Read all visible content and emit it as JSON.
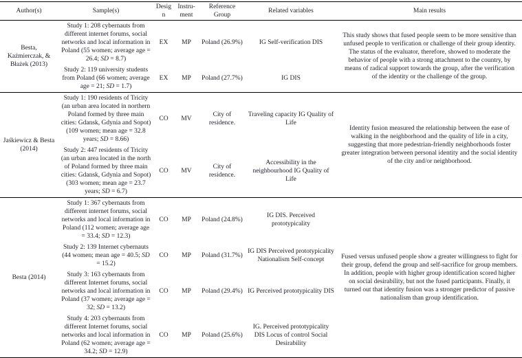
{
  "colors": {
    "background": "#ffffff",
    "text": "#1e1e28",
    "rule": "#000000"
  },
  "table": {
    "headers": {
      "author": "Author(s)",
      "sample": "Sample(s)",
      "design": "Design",
      "instrument": "Instru-ment",
      "reference": "Reference Group",
      "related": "Related variables",
      "main": "Main results"
    },
    "blocks": [
      {
        "author": "Besta, Kaźmierczak, & Błażek (2013)",
        "studies": [
          {
            "sample": "Study 1: 208 cybernauts from different internet forums, social networks and local information in Poland (55 women; average age = 26.4; SD = 8.7)",
            "design": "EX",
            "instrument": "MP",
            "reference": "Poland (26.9%)",
            "related": "IG Self-verification DIS"
          },
          {
            "sample": "Study 2: 119 university students from Poland (66 women; average age = 21; SD = 1.7)",
            "design": "EX",
            "instrument": "MP",
            "reference": "Poland (27.7%)",
            "related": "IG DIS"
          }
        ],
        "main_results": "This study shows that fused people seem to be more sensitive than unfused people to verification or challenge of their group identity. The status of the evaluator, therefore, showed to moderate the behavior of people with a strong attachment to the country, by means of radical support towards the group, after the verification of the identity or the challenge of the group."
      },
      {
        "author": "Jaśkiewicz & Besta (2014)",
        "studies": [
          {
            "sample": "Study 1: 190 residents of Tricity (an urban area located in northern Poland formed by three main cities: Gdansk, Gdynia and Sopot) (109 women; mean age = 32.8 years; SD = 8.66)",
            "design": "CO",
            "instrument": "MV",
            "reference": "City of residence.",
            "related": "Traveling capacity IG Quality of Life"
          },
          {
            "sample": "Study 2: 447 residents of Tricity (an urban area located in the north of Poland formed by three main cities: Gdansk, Gdynia and Sopot) (303 women; mean age = 23.7 years; SD = 6.7)",
            "design": "CO",
            "instrument": "MV",
            "reference": "City of residence.",
            "related": "Accessibility in the neighbourhood IG Quality of Life"
          }
        ],
        "main_results": "Identity fusion measured the relationship between the ease of walking in the neighborhood and the quality of life in a city, suggesting that more pedestrian-friendly neighborhoods foster greater integration between personal identity and the social identity of the city and/or neighborhood."
      },
      {
        "author": "Besta (2014)",
        "studies": [
          {
            "sample": "Study 1: 367 cybernauts from different internet forums, social networks and local information in Poland (112 women; average age = 33.4; SD = 12.3)",
            "design": "CO",
            "instrument": "MP",
            "reference": "Poland (24.8%)",
            "related": "IG DIS. Perceived prototypicality"
          },
          {
            "sample": "Study 2: 139 Internet cybernauts (44 women; mean age = 40.5; SD = 15.2)",
            "design": "CO",
            "instrument": "MP",
            "reference": "Poland (31.7%)",
            "related": "IG DIS Perceived prototypicality Nationalism Self-concept"
          },
          {
            "sample": "Study 3: 163 cybernauts from different Internet forums, social networks and local information in Poland (37 women; average age = 32; SD = 13.2)",
            "design": "CO",
            "instrument": "MP",
            "reference": "Poland (29.4%)",
            "related": "IG Perceived prototypicality DIS"
          },
          {
            "sample": "Study 4: 203 cybernauts from different Internet forums, social networks and local information in Poland (62 women; average age = 34.2; SD = 12.9)",
            "design": "CO",
            "instrument": "MP",
            "reference": "Poland (25.6%)",
            "related": "IG. Perceived prototypicality DIS Locus of control Social Desirability"
          }
        ],
        "main_results": "Fused versus unfused people show a greater willingness to fight for their group, defend the group and self-sacrifice for group members. In addition, people with higher group identification scored higher on social desirability, but not the fused participants. Finally, it turned out that identity fusion was a stronger predictor of passive nationalism than group identification."
      }
    ]
  }
}
